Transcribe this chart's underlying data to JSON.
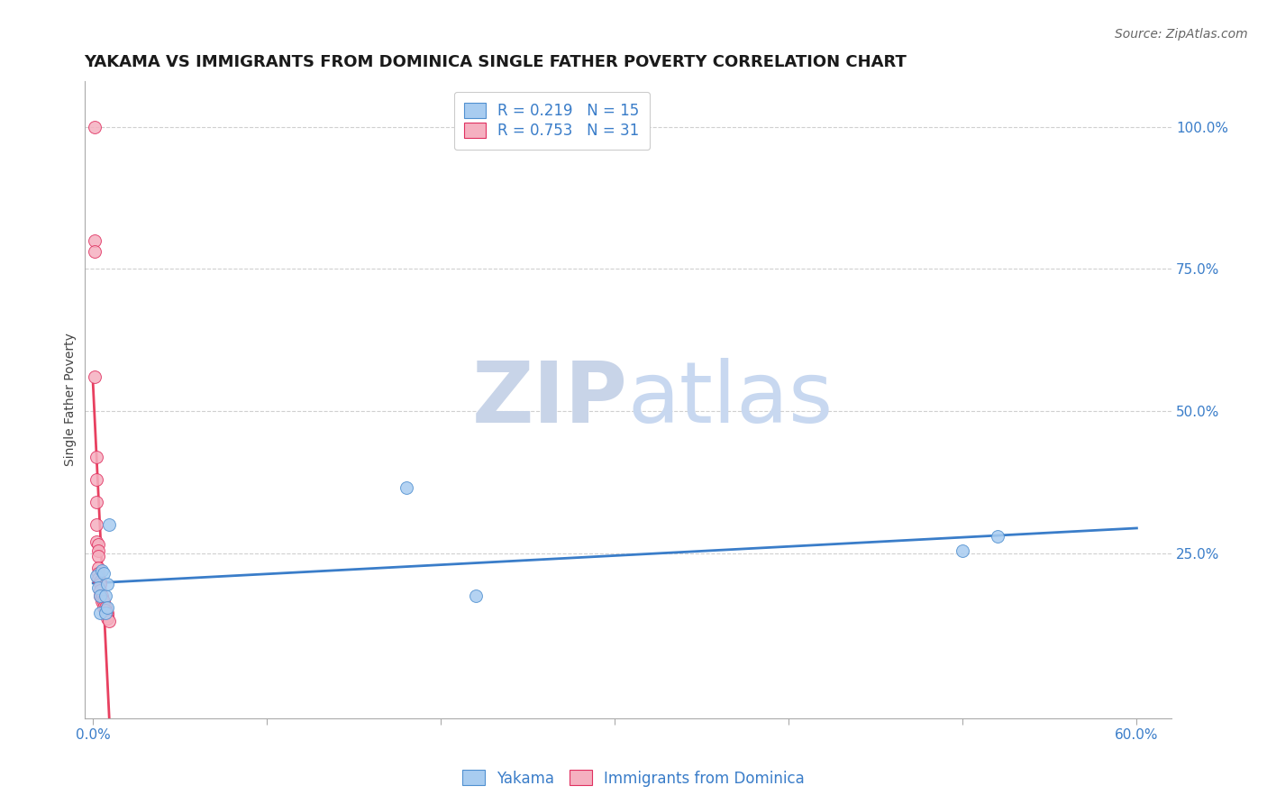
{
  "title": "YAKAMA VS IMMIGRANTS FROM DOMINICA SINGLE FATHER POVERTY CORRELATION CHART",
  "source": "Source: ZipAtlas.com",
  "ylabel": "Single Father Poverty",
  "xlim": [
    -0.005,
    0.62
  ],
  "ylim": [
    -0.04,
    1.08
  ],
  "blue_label": "Yakama",
  "pink_label": "Immigrants from Dominica",
  "blue_R": 0.219,
  "blue_N": 15,
  "pink_R": 0.753,
  "pink_N": 31,
  "blue_color": "#A8CCF0",
  "pink_color": "#F5B0C0",
  "blue_edge_color": "#5090D0",
  "pink_edge_color": "#E03060",
  "blue_line_color": "#3A7DC9",
  "pink_line_color": "#E84060",
  "watermark_zip": "ZIP",
  "watermark_atlas": "atlas",
  "watermark_color_zip": "#C8D8EC",
  "watermark_color_atlas": "#C0D4F0",
  "blue_x": [
    0.002,
    0.003,
    0.004,
    0.004,
    0.005,
    0.006,
    0.007,
    0.007,
    0.008,
    0.008,
    0.009,
    0.18,
    0.22,
    0.5,
    0.52
  ],
  "blue_y": [
    0.21,
    0.19,
    0.175,
    0.145,
    0.22,
    0.215,
    0.175,
    0.145,
    0.195,
    0.155,
    0.3,
    0.365,
    0.175,
    0.255,
    0.28
  ],
  "pink_x": [
    0.001,
    0.001,
    0.001,
    0.001,
    0.002,
    0.002,
    0.002,
    0.002,
    0.002,
    0.003,
    0.003,
    0.003,
    0.003,
    0.003,
    0.003,
    0.004,
    0.004,
    0.004,
    0.004,
    0.005,
    0.005,
    0.005,
    0.006,
    0.006,
    0.007,
    0.007,
    0.007,
    0.008,
    0.008,
    0.008,
    0.009
  ],
  "pink_y": [
    1.0,
    0.8,
    0.78,
    0.56,
    0.42,
    0.38,
    0.34,
    0.3,
    0.27,
    0.265,
    0.255,
    0.245,
    0.225,
    0.215,
    0.205,
    0.2,
    0.195,
    0.185,
    0.175,
    0.175,
    0.17,
    0.165,
    0.165,
    0.155,
    0.155,
    0.15,
    0.145,
    0.145,
    0.14,
    0.135,
    0.13
  ],
  "x_ticks": [
    0.0,
    0.1,
    0.2,
    0.3,
    0.4,
    0.5,
    0.6
  ],
  "x_tick_labels": [
    "0.0%",
    "",
    "",
    "",
    "",
    "",
    "60.0%"
  ],
  "y_ticks": [
    0.0,
    0.25,
    0.5,
    0.75,
    1.0
  ],
  "y_tick_labels": [
    "",
    "25.0%",
    "50.0%",
    "75.0%",
    "100.0%"
  ],
  "marker_size": 100,
  "grid_color": "#D0D0D0",
  "bg_color": "#FFFFFF",
  "title_fontsize": 13,
  "source_fontsize": 10,
  "axis_label_fontsize": 10,
  "tick_fontsize": 11,
  "legend_fontsize": 12
}
